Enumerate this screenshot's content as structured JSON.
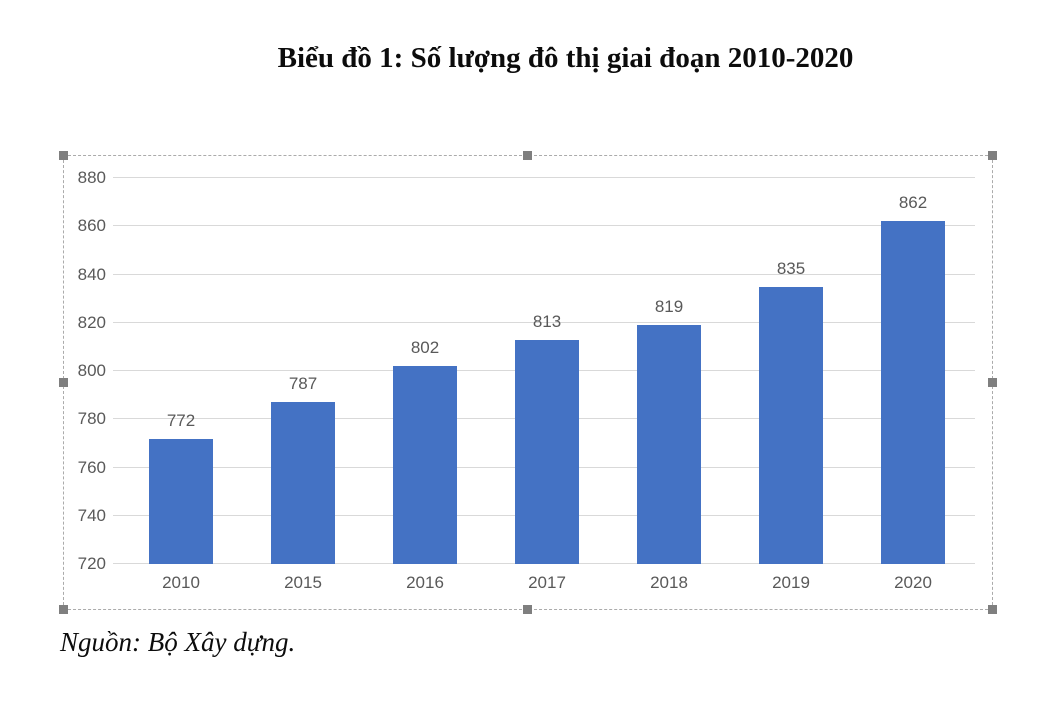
{
  "header": {
    "title": "Biểu đồ 1: Số lượng đô thị giai đoạn 2010-2020"
  },
  "footer": {
    "source_note": "Nguồn: Bộ Xây dựng."
  },
  "chart_data": {
    "type": "bar",
    "title": "Biểu đồ 1: Số lượng đô thị giai đoạn 2010-2020",
    "categories": [
      "2010",
      "2015",
      "2016",
      "2017",
      "2018",
      "2019",
      "2020"
    ],
    "values": [
      772,
      787,
      802,
      813,
      819,
      835,
      862
    ],
    "xlabel": "",
    "ylabel": "",
    "ylim": [
      720,
      880
    ],
    "ytick_step": 20,
    "yticks": [
      720,
      740,
      760,
      780,
      800,
      820,
      840,
      860,
      880
    ],
    "grid": true,
    "legend_position": "none",
    "data_labels": true,
    "colors": {
      "bar": "#4472C4",
      "gridline": "#D9D9D9",
      "axis_label": "#595959",
      "data_label": "#595959"
    },
    "source_note": "Nguồn: Bộ Xây dựng."
  },
  "selection": {
    "border_color": "#ABABAB",
    "handle_color": "#7F7F7F",
    "handles": [
      "top-left",
      "top-center",
      "top-right",
      "middle-left",
      "middle-right",
      "bottom-left",
      "bottom-center",
      "bottom-right"
    ]
  }
}
